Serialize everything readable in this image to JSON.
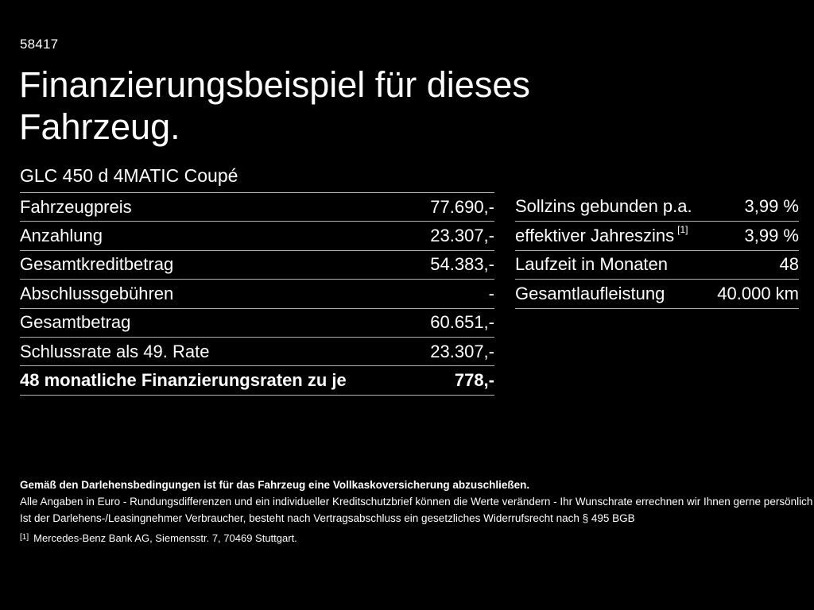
{
  "page": {
    "ref_number": "58417",
    "title": "Finanzierungsbeispiel für dieses Fahrzeug.",
    "vehicle_model": "GLC 450 d 4MATIC Coupé"
  },
  "financing_table": {
    "rows": [
      {
        "label": "Fahrzeugpreis",
        "value": "77.690,-"
      },
      {
        "label": "Anzahlung",
        "value": "23.307,-"
      },
      {
        "label": "Gesamtkreditbetrag",
        "value": "54.383,-"
      },
      {
        "label": "Abschlussgebühren",
        "value": "-"
      },
      {
        "label": "Gesamtbetrag",
        "value": "60.651,-"
      },
      {
        "label": "Schlussrate als 49. Rate",
        "value": "23.307,-"
      },
      {
        "label": "48 monatliche Finanzierungsraten zu je",
        "value": "778,-"
      }
    ]
  },
  "conditions_table": {
    "rows": [
      {
        "label": "Sollzins gebunden p.a.",
        "value": "3,99 %"
      },
      {
        "label": "effektiver Jahreszins",
        "label_sup": "[1]",
        "value": "3,99 %"
      },
      {
        "label": "Laufzeit in Monaten",
        "value": "48"
      },
      {
        "label": "Gesamtlaufleistung",
        "value": "40.000 km"
      }
    ]
  },
  "footer": {
    "insurance_note": "Gemäß den Darlehensbedingungen ist für das Fahrzeug eine Vollkaskoversicherung abzuschließen.",
    "disclaimer_line1": "Alle Angaben in Euro - Rundungsdifferenzen und ein individueller Kreditschutzbrief können die Werte verändern - Ihr Wunschrate errechnen wir Ihnen gerne persönlich",
    "disclaimer_line2": "Ist der Darlehens-/Leasingnehmer Verbraucher, besteht nach Vertragsabschluss ein gesetzliches Widerrufsrecht nach § 495 BGB",
    "footnote_marker": "[1]",
    "footnote_text": "Mercedes-Benz Bank AG, Siemensstr. 7, 70469 Stuttgart."
  },
  "colors": {
    "background": "#000000",
    "text": "#ffffff",
    "divider": "#b0b0b0"
  }
}
